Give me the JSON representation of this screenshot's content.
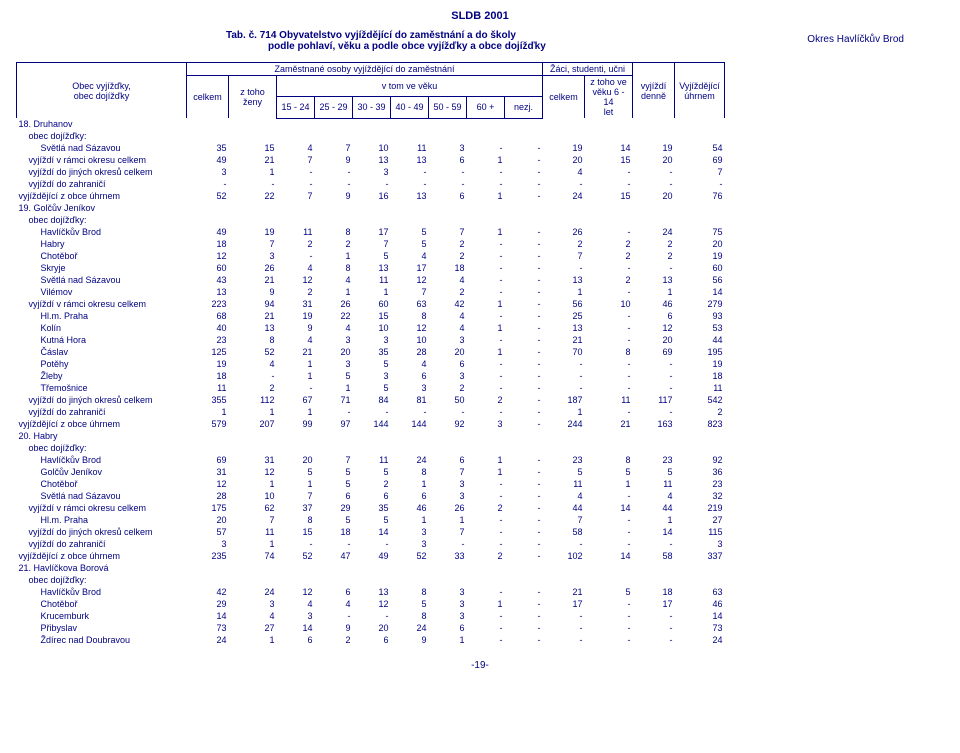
{
  "doc_title": "SLDB 2001",
  "caption": {
    "line1": "Tab. č. 714 Obyvatelstvo vyjíždějící do zaměstnání a do školy",
    "line2": "podle pohlaví, věku a podle obce vyjížďky a obce dojížďky",
    "okres": "Okres Havlíčkův Brod"
  },
  "headers": {
    "row_label": "Obec vyjížďky,\nobec dojížďky",
    "emp_group": "Zaměstnané osoby vyjíždějící do zaměstnání",
    "students_group": "Žáci, studenti, učni",
    "celkem": "celkem",
    "ztoho_zeny": "z toho ženy",
    "vtom": "v tom ve věku",
    "ages": [
      "15 - 24",
      "25 - 29",
      "30 - 39",
      "40 - 49",
      "50 - 59",
      "60 +",
      "nezj."
    ],
    "stud_celkem": "celkem",
    "stud_ztoho": "z toho ve\nvěku 6 - 14\nlet",
    "daily": "vyjíždí\ndenně",
    "total_out": "Vyjíždějící\núhrnem"
  },
  "page_footer": "-19-",
  "col_widths": [
    "170px",
    "42px",
    "48px",
    "38px",
    "38px",
    "38px",
    "38px",
    "38px",
    "38px",
    "38px",
    "42px",
    "48px",
    "42px",
    "50px"
  ],
  "rows": [
    {
      "label": "18. Druhanov",
      "indent": 0,
      "values": [
        "",
        "",
        "",
        "",
        "",
        "",
        "",
        "",
        "",
        "",
        "",
        "",
        "",
        ""
      ]
    },
    {
      "label": "obec dojížďky:",
      "indent": 1,
      "values": [
        "",
        "",
        "",
        "",
        "",
        "",
        "",
        "",
        "",
        "",
        "",
        "",
        "",
        ""
      ]
    },
    {
      "label": "Světlá nad Sázavou",
      "indent": 2,
      "values": [
        "35",
        "15",
        "4",
        "7",
        "10",
        "11",
        "3",
        "-",
        "-",
        "19",
        "14",
        "19",
        "54"
      ]
    },
    {
      "label": "vyjíždí v rámci okresu celkem",
      "indent": 1,
      "values": [
        "49",
        "21",
        "7",
        "9",
        "13",
        "13",
        "6",
        "1",
        "-",
        "20",
        "15",
        "20",
        "69"
      ]
    },
    {
      "label": "vyjíždí do jiných okresů celkem",
      "indent": 1,
      "values": [
        "3",
        "1",
        "-",
        "-",
        "3",
        "-",
        "-",
        "-",
        "-",
        "4",
        "-",
        "-",
        "7"
      ]
    },
    {
      "label": "vyjíždí do zahraničí",
      "indent": 1,
      "values": [
        "-",
        "-",
        "-",
        "-",
        "-",
        "-",
        "-",
        "-",
        "-",
        "-",
        "-",
        "-",
        "-"
      ]
    },
    {
      "label": "vyjíždějící z obce úhrnem",
      "indent": 0,
      "values": [
        "52",
        "22",
        "7",
        "9",
        "16",
        "13",
        "6",
        "1",
        "-",
        "24",
        "15",
        "20",
        "76"
      ]
    },
    {
      "label": "19. Golčův Jeníkov",
      "indent": 0,
      "values": [
        "",
        "",
        "",
        "",
        "",
        "",
        "",
        "",
        "",
        "",
        "",
        "",
        "",
        ""
      ]
    },
    {
      "label": "obec dojížďky:",
      "indent": 1,
      "values": [
        "",
        "",
        "",
        "",
        "",
        "",
        "",
        "",
        "",
        "",
        "",
        "",
        "",
        ""
      ]
    },
    {
      "label": "Havlíčkův Brod",
      "indent": 2,
      "values": [
        "49",
        "19",
        "11",
        "8",
        "17",
        "5",
        "7",
        "1",
        "-",
        "26",
        "-",
        "24",
        "75"
      ]
    },
    {
      "label": "Habry",
      "indent": 2,
      "values": [
        "18",
        "7",
        "2",
        "2",
        "7",
        "5",
        "2",
        "-",
        "-",
        "2",
        "2",
        "2",
        "20"
      ]
    },
    {
      "label": "Chotěboř",
      "indent": 2,
      "values": [
        "12",
        "3",
        "-",
        "1",
        "5",
        "4",
        "2",
        "-",
        "-",
        "7",
        "2",
        "2",
        "19"
      ]
    },
    {
      "label": "Skryje",
      "indent": 2,
      "values": [
        "60",
        "26",
        "4",
        "8",
        "13",
        "17",
        "18",
        "-",
        "-",
        "-",
        "-",
        "-",
        "60"
      ]
    },
    {
      "label": "Světlá nad Sázavou",
      "indent": 2,
      "values": [
        "43",
        "21",
        "12",
        "4",
        "11",
        "12",
        "4",
        "-",
        "-",
        "13",
        "2",
        "13",
        "56"
      ]
    },
    {
      "label": "Vilémov",
      "indent": 2,
      "values": [
        "13",
        "9",
        "2",
        "1",
        "1",
        "7",
        "2",
        "-",
        "-",
        "1",
        "-",
        "1",
        "14"
      ]
    },
    {
      "label": "vyjíždí v rámci okresu celkem",
      "indent": 1,
      "values": [
        "223",
        "94",
        "31",
        "26",
        "60",
        "63",
        "42",
        "1",
        "-",
        "56",
        "10",
        "46",
        "279"
      ]
    },
    {
      "label": "Hl.m. Praha",
      "indent": 2,
      "values": [
        "68",
        "21",
        "19",
        "22",
        "15",
        "8",
        "4",
        "-",
        "-",
        "25",
        "-",
        "6",
        "93"
      ]
    },
    {
      "label": "Kolín",
      "indent": 2,
      "values": [
        "40",
        "13",
        "9",
        "4",
        "10",
        "12",
        "4",
        "1",
        "-",
        "13",
        "-",
        "12",
        "53"
      ]
    },
    {
      "label": "Kutná Hora",
      "indent": 2,
      "values": [
        "23",
        "8",
        "4",
        "3",
        "3",
        "10",
        "3",
        "-",
        "-",
        "21",
        "-",
        "20",
        "44"
      ]
    },
    {
      "label": "Čáslav",
      "indent": 2,
      "values": [
        "125",
        "52",
        "21",
        "20",
        "35",
        "28",
        "20",
        "1",
        "-",
        "70",
        "8",
        "69",
        "195"
      ]
    },
    {
      "label": "Potěhy",
      "indent": 2,
      "values": [
        "19",
        "4",
        "1",
        "3",
        "5",
        "4",
        "6",
        "-",
        "-",
        "-",
        "-",
        "-",
        "19"
      ]
    },
    {
      "label": "Žleby",
      "indent": 2,
      "values": [
        "18",
        "-",
        "1",
        "5",
        "3",
        "6",
        "3",
        "-",
        "-",
        "-",
        "-",
        "-",
        "18"
      ]
    },
    {
      "label": "Třemošnice",
      "indent": 2,
      "values": [
        "11",
        "2",
        "-",
        "1",
        "5",
        "3",
        "2",
        "-",
        "-",
        "-",
        "-",
        "-",
        "11"
      ]
    },
    {
      "label": "vyjíždí do jiných okresů celkem",
      "indent": 1,
      "values": [
        "355",
        "112",
        "67",
        "71",
        "84",
        "81",
        "50",
        "2",
        "-",
        "187",
        "11",
        "117",
        "542"
      ]
    },
    {
      "label": "vyjíždí do zahraničí",
      "indent": 1,
      "values": [
        "1",
        "1",
        "1",
        "-",
        "-",
        "-",
        "-",
        "-",
        "-",
        "1",
        "-",
        "-",
        "2"
      ]
    },
    {
      "label": "vyjíždějící z obce úhrnem",
      "indent": 0,
      "values": [
        "579",
        "207",
        "99",
        "97",
        "144",
        "144",
        "92",
        "3",
        "-",
        "244",
        "21",
        "163",
        "823"
      ]
    },
    {
      "label": "20. Habry",
      "indent": 0,
      "values": [
        "",
        "",
        "",
        "",
        "",
        "",
        "",
        "",
        "",
        "",
        "",
        "",
        "",
        ""
      ]
    },
    {
      "label": "obec dojížďky:",
      "indent": 1,
      "values": [
        "",
        "",
        "",
        "",
        "",
        "",
        "",
        "",
        "",
        "",
        "",
        "",
        "",
        ""
      ]
    },
    {
      "label": "Havlíčkův Brod",
      "indent": 2,
      "values": [
        "69",
        "31",
        "20",
        "7",
        "11",
        "24",
        "6",
        "1",
        "-",
        "23",
        "8",
        "23",
        "92"
      ]
    },
    {
      "label": "Golčův Jeníkov",
      "indent": 2,
      "values": [
        "31",
        "12",
        "5",
        "5",
        "5",
        "8",
        "7",
        "1",
        "-",
        "5",
        "5",
        "5",
        "36"
      ]
    },
    {
      "label": "Chotěboř",
      "indent": 2,
      "values": [
        "12",
        "1",
        "1",
        "5",
        "2",
        "1",
        "3",
        "-",
        "-",
        "11",
        "1",
        "11",
        "23"
      ]
    },
    {
      "label": "Světlá nad Sázavou",
      "indent": 2,
      "values": [
        "28",
        "10",
        "7",
        "6",
        "6",
        "6",
        "3",
        "-",
        "-",
        "4",
        "-",
        "4",
        "32"
      ]
    },
    {
      "label": "vyjíždí v rámci okresu celkem",
      "indent": 1,
      "values": [
        "175",
        "62",
        "37",
        "29",
        "35",
        "46",
        "26",
        "2",
        "-",
        "44",
        "14",
        "44",
        "219"
      ]
    },
    {
      "label": "Hl.m. Praha",
      "indent": 2,
      "values": [
        "20",
        "7",
        "8",
        "5",
        "5",
        "1",
        "1",
        "-",
        "-",
        "7",
        "-",
        "1",
        "27"
      ]
    },
    {
      "label": "vyjíždí do jiných okresů celkem",
      "indent": 1,
      "values": [
        "57",
        "11",
        "15",
        "18",
        "14",
        "3",
        "7",
        "-",
        "-",
        "58",
        "-",
        "14",
        "115"
      ]
    },
    {
      "label": "vyjíždí do zahraničí",
      "indent": 1,
      "values": [
        "3",
        "1",
        "-",
        "-",
        "-",
        "3",
        "-",
        "-",
        "-",
        "-",
        "-",
        "-",
        "3"
      ]
    },
    {
      "label": "vyjíždějící z obce úhrnem",
      "indent": 0,
      "values": [
        "235",
        "74",
        "52",
        "47",
        "49",
        "52",
        "33",
        "2",
        "-",
        "102",
        "14",
        "58",
        "337"
      ]
    },
    {
      "label": "21. Havlíčkova Borová",
      "indent": 0,
      "values": [
        "",
        "",
        "",
        "",
        "",
        "",
        "",
        "",
        "",
        "",
        "",
        "",
        "",
        ""
      ]
    },
    {
      "label": "obec dojížďky:",
      "indent": 1,
      "values": [
        "",
        "",
        "",
        "",
        "",
        "",
        "",
        "",
        "",
        "",
        "",
        "",
        "",
        ""
      ]
    },
    {
      "label": "Havlíčkův Brod",
      "indent": 2,
      "values": [
        "42",
        "24",
        "12",
        "6",
        "13",
        "8",
        "3",
        "-",
        "-",
        "21",
        "5",
        "18",
        "63"
      ]
    },
    {
      "label": "Chotěboř",
      "indent": 2,
      "values": [
        "29",
        "3",
        "4",
        "4",
        "12",
        "5",
        "3",
        "1",
        "-",
        "17",
        "-",
        "17",
        "46"
      ]
    },
    {
      "label": "Krucemburk",
      "indent": 2,
      "values": [
        "14",
        "4",
        "3",
        "-",
        "-",
        "8",
        "3",
        "-",
        "-",
        "-",
        "-",
        "-",
        "14"
      ]
    },
    {
      "label": "Přibyslav",
      "indent": 2,
      "values": [
        "73",
        "27",
        "14",
        "9",
        "20",
        "24",
        "6",
        "-",
        "-",
        "-",
        "-",
        "-",
        "73"
      ]
    },
    {
      "label": "Ždírec nad Doubravou",
      "indent": 2,
      "values": [
        "24",
        "1",
        "6",
        "2",
        "6",
        "9",
        "1",
        "-",
        "-",
        "-",
        "-",
        "-",
        "24"
      ]
    }
  ]
}
